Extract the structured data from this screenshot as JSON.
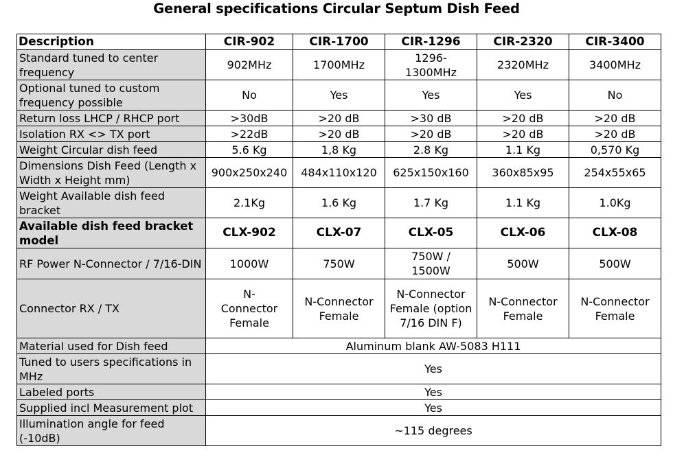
{
  "title": "General specifications Circular Septum Dish Feed",
  "header": {
    "description": "Description",
    "models": [
      "CIR-902",
      "CIR-1700",
      "CIR-1296",
      "CIR-2320",
      "CIR-3400"
    ]
  },
  "rows": [
    {
      "label": "Standard tuned to center frequency",
      "values": [
        "902MHz",
        "1700MHz",
        "1296-1300MHz",
        "2320MHz",
        "3400MHz"
      ]
    },
    {
      "label": "Optional tuned to custom frequency possible",
      "values": [
        "No",
        "Yes",
        "Yes",
        "Yes",
        "No"
      ]
    },
    {
      "label": "Return loss LHCP / RHCP port",
      "values": [
        ">30dB",
        ">20 dB",
        ">30 dB",
        ">20 dB",
        ">20 dB"
      ]
    },
    {
      "label": "Isolation RX <> TX port",
      "values": [
        ">22dB",
        ">20 dB",
        ">20 dB",
        ">20 dB",
        ">20 dB"
      ]
    },
    {
      "label": "Weight Circular dish feed",
      "values": [
        "5.6 Kg",
        "1,8 Kg",
        "2.8 Kg",
        "1.1 Kg",
        "0,570 Kg"
      ]
    },
    {
      "label": "Dimensions Dish Feed (Length x Width x Height mm)",
      "values": [
        "900x250x240",
        "484x110x120",
        "625x150x160",
        "360x85x95",
        "254x55x65"
      ]
    },
    {
      "label": "Weight Available dish feed bracket",
      "values": [
        "2.1Kg",
        "1.6 Kg",
        "1.7 Kg",
        "1.1 Kg",
        "1.0Kg"
      ]
    },
    {
      "label": "Available dish feed bracket model",
      "values": [
        "CLX-902",
        "CLX-07",
        "CLX-05",
        "CLX-06",
        "CLX-08"
      ]
    },
    {
      "label": "RF Power N-Connector / 7/16-DIN",
      "values": [
        "1000W",
        "750W",
        "750W / 1500W",
        "500W",
        "500W"
      ]
    },
    {
      "label": "Connector RX / TX",
      "values": [
        "N-Connector Female",
        "N-Connector Female",
        "N-Connector Female (option 7/16 DIN F)",
        "N-Connector Female",
        "N-Connector Female"
      ]
    },
    {
      "label": "Material used for Dish feed",
      "value": "Aluminum blank AW-5083 H111"
    },
    {
      "label": "Tuned to users specifications in MHz",
      "value": "Yes"
    },
    {
      "label": "Labeled ports",
      "value": "Yes"
    },
    {
      "label": "Supplied incl Measurement plot",
      "value": "Yes"
    },
    {
      "label": "Illumination angle for feed (-10dB)",
      "value": "~115 degrees"
    }
  ]
}
